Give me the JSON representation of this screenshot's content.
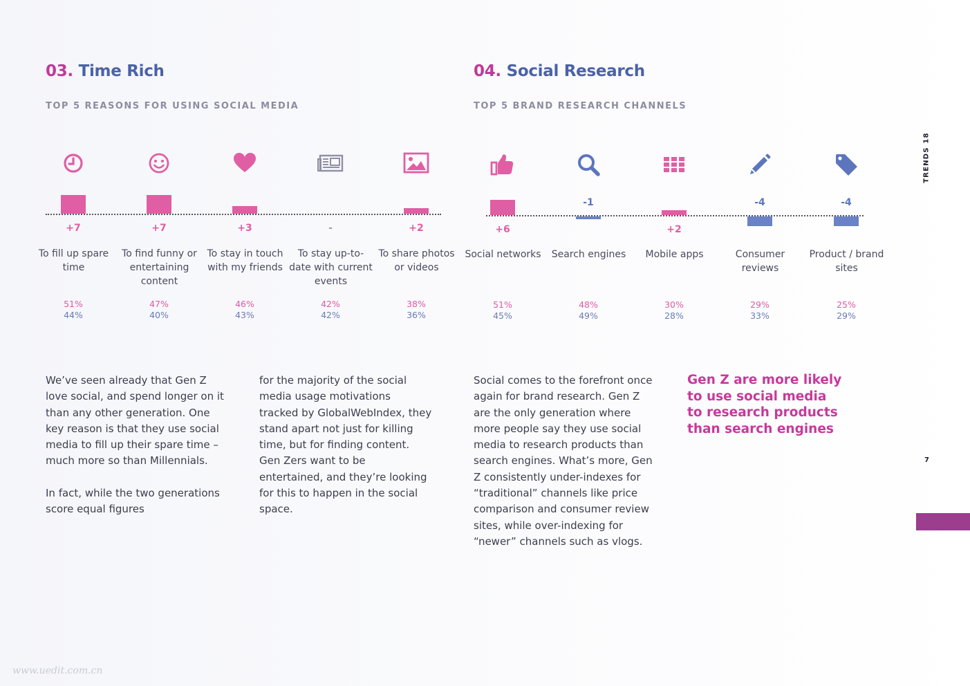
{
  "left_section": {
    "number": "03.",
    "title": "Time Rich",
    "subtitle": "TOP 5 REASONS FOR USING SOCIAL MEDIA",
    "items": [
      {
        "icon": "clock-icon",
        "delta": "+7",
        "level": 7,
        "label": "To fill up spare time",
        "genz": "51%",
        "millennials": "44%"
      },
      {
        "icon": "smiley-icon",
        "delta": "+7",
        "level": 7,
        "label": "To find funny or entertaining content",
        "genz": "47%",
        "millennials": "40%"
      },
      {
        "icon": "heart-icon",
        "delta": "+3",
        "level": 3,
        "label": "To stay in touch with my friends",
        "genz": "46%",
        "millennials": "43%"
      },
      {
        "icon": "newspaper-icon",
        "delta": "-",
        "level": 0,
        "label": "To stay up-to-date with current events",
        "genz": "42%",
        "millennials": "42%"
      },
      {
        "icon": "image-icon",
        "delta": "+2",
        "level": 2,
        "label": "To share photos or videos",
        "genz": "38%",
        "millennials": "36%"
      }
    ],
    "body_col1": [
      "We’ve seen already that Gen Z love social, and spend longer on it than any other generation. One key reason is that they use social media to fill up their spare time – much more so than Millennials.",
      "In fact, while the two generations score equal figures"
    ],
    "body_col2": [
      "for the majority of the social media usage motivations tracked by GlobalWebIndex, they stand apart not just for killing time, but for finding content. Gen Zers want to be entertained, and they’re looking for this to happen in the social space."
    ]
  },
  "right_section": {
    "number": "04.",
    "title": "Social Research",
    "subtitle": "TOP 5 BRAND RESEARCH CHANNELS",
    "items": [
      {
        "icon": "thumbs-up-icon",
        "delta": "+6",
        "level": 6,
        "label": "Social networks",
        "genz": "51%",
        "millennials": "45%"
      },
      {
        "icon": "search-icon",
        "delta": "-1",
        "level": -1,
        "label": "Search engines",
        "genz": "48%",
        "millennials": "49%"
      },
      {
        "icon": "apps-grid-icon",
        "delta": "+2",
        "level": 2,
        "label": "Mobile apps",
        "genz": "30%",
        "millennials": "28%"
      },
      {
        "icon": "pencil-icon",
        "delta": "-4",
        "level": -4,
        "label": "Consumer reviews",
        "genz": "29%",
        "millennials": "33%"
      },
      {
        "icon": "tag-icon",
        "delta": "-4",
        "level": -4,
        "label": "Product / brand sites",
        "genz": "25%",
        "millennials": "29%"
      }
    ],
    "body": [
      "Social comes to the forefront once again for brand research. Gen Z are the only generation where more people say they use social media to research products than search engines. What’s more, Gen Z consistently under-indexes for “traditional” channels like price comparison and consumer review sites, while over-indexing for “newer” channels such as vlogs."
    ],
    "pull_quote": "Gen Z are more likely to use social media to research products than search engines"
  },
  "sidebar": {
    "brand": "TRENDS 18",
    "page_number": "7"
  },
  "colors": {
    "gen_z": "#e05ea4",
    "millennials": "#6a83c6",
    "accent": "#c0399a",
    "title_blue": "#4a62a8",
    "tab": "#9c3d8e"
  },
  "watermark": "www.uedit.com.cn"
}
